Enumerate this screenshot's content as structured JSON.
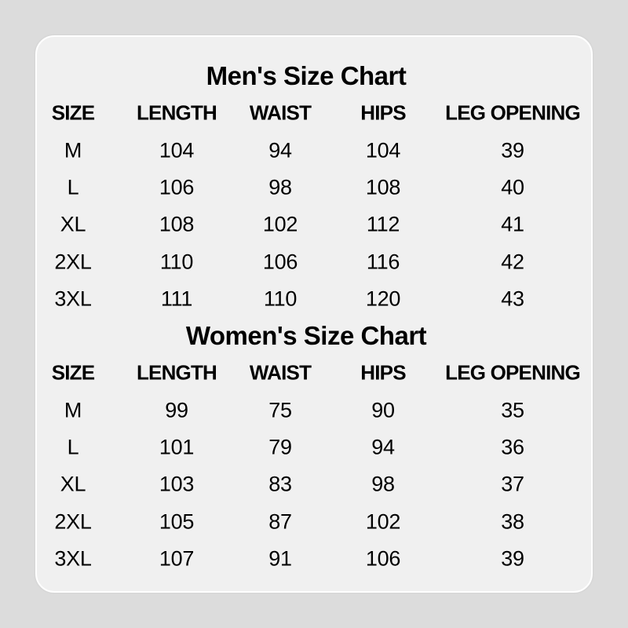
{
  "colors": {
    "background": "#dcdcdc",
    "card": "#f0f0f0",
    "text": "#000000"
  },
  "tables": [
    {
      "title": "Men's Size Chart",
      "headers": [
        "SIZE",
        "LENGTH",
        "WAIST",
        "HIPS",
        "LEG OPENING"
      ],
      "rows": [
        [
          "M",
          "104",
          "94",
          "104",
          "39"
        ],
        [
          "L",
          "106",
          "98",
          "108",
          "40"
        ],
        [
          "XL",
          "108",
          "102",
          "112",
          "41"
        ],
        [
          "2XL",
          "110",
          "106",
          "116",
          "42"
        ],
        [
          "3XL",
          "111",
          "110",
          "120",
          "43"
        ]
      ]
    },
    {
      "title": "Women's Size Chart",
      "headers": [
        "SIZE",
        "LENGTH",
        "WAIST",
        "HIPS",
        "LEG OPENING"
      ],
      "rows": [
        [
          "M",
          "99",
          "75",
          "90",
          "35"
        ],
        [
          "L",
          "101",
          "79",
          "94",
          "36"
        ],
        [
          "XL",
          "103",
          "83",
          "98",
          "37"
        ],
        [
          "2XL",
          "105",
          "87",
          "102",
          "38"
        ],
        [
          "3XL",
          "107",
          "91",
          "106",
          "39"
        ]
      ]
    }
  ]
}
